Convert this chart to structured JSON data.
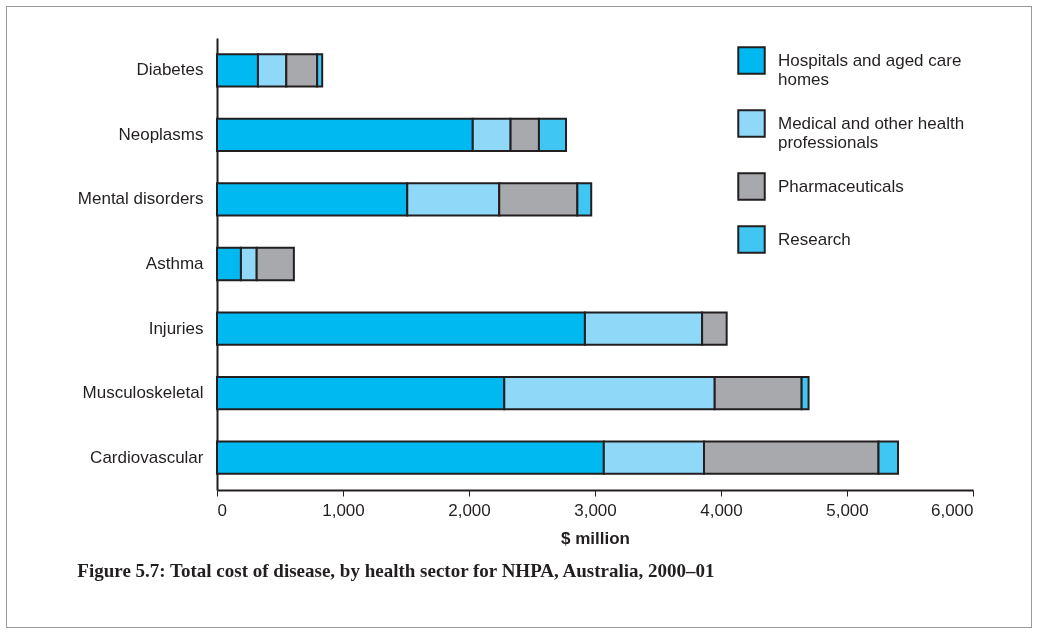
{
  "chart_data": {
    "type": "bar",
    "orientation": "horizontal",
    "stacked": true,
    "title": "Figure 5.7: Total cost of disease, by health sector for NHPA, Australia, 2000–01",
    "xlabel": "$ million",
    "categories": [
      "Diabetes",
      "Neoplasms",
      "Mental disorders",
      "Asthma",
      "Injuries",
      "Musculoskeletal",
      "Cardiovascular"
    ],
    "series": [
      {
        "name": "Hospitals and aged care homes",
        "color": "#00b9f1",
        "values": [
          325,
          2030,
          1510,
          190,
          2920,
          2280,
          3070
        ]
      },
      {
        "name": "Medical and other health professionals",
        "color": "#8fd8f8",
        "values": [
          225,
          300,
          730,
          125,
          930,
          1670,
          795
        ]
      },
      {
        "name": "Pharmaceuticals",
        "color": "#a8a9ad",
        "values": [
          245,
          225,
          620,
          295,
          195,
          690,
          1385
        ]
      },
      {
        "name": "Research",
        "color": "#3fc6f3",
        "values": [
          40,
          215,
          110,
          null,
          null,
          55,
          155
        ]
      }
    ],
    "xlim": [
      0,
      6000
    ],
    "xticks": [
      0,
      {
        "value": 1000,
        "label": "1,000"
      },
      {
        "value": 2000,
        "label": "2,000"
      },
      {
        "value": 3000,
        "label": "3,000"
      },
      {
        "value": 4000,
        "label": "4,000"
      },
      {
        "value": 5000,
        "label": "5,000"
      },
      {
        "value": 6000,
        "label": "6,000"
      }
    ],
    "grid": false,
    "legend": "top right"
  }
}
